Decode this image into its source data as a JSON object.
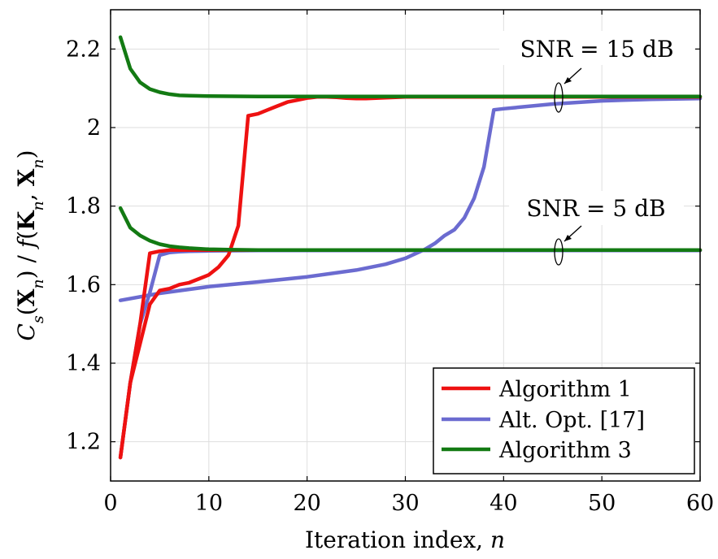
{
  "chart_data": {
    "type": "line",
    "xlabel": "Iteration index, n",
    "ylabel": "C_s(X_n) / f(K_n, X_n)",
    "xlim": [
      0,
      60
    ],
    "ylim": [
      1.1,
      2.3
    ],
    "xticks": [
      "0",
      "10",
      "20",
      "30",
      "40",
      "50",
      "60"
    ],
    "yticks": [
      "1.2",
      "1.4",
      "1.6",
      "1.8",
      "2",
      "2.2"
    ],
    "grid": true,
    "legend_position": "bottom-right",
    "legend": [
      "Algorithm 1",
      "Alt. Opt. [17]",
      "Algorithm 3"
    ],
    "annotations": [
      "SNR = 15 dB",
      "SNR = 5 dB"
    ],
    "series": [
      {
        "name": "Algorithm 1",
        "color": "#ee1111",
        "group": "SNR = 15 dB",
        "x": [
          1,
          2,
          3,
          4,
          5,
          6,
          7,
          8,
          9,
          10,
          11,
          12,
          13,
          14,
          15,
          16,
          17,
          18,
          19,
          20,
          21,
          22,
          23,
          24,
          25,
          26,
          27,
          28,
          29,
          30,
          32,
          35,
          40,
          45,
          50,
          55,
          60
        ],
        "y": [
          1.16,
          1.35,
          1.45,
          1.55,
          1.585,
          1.59,
          1.6,
          1.605,
          1.615,
          1.625,
          1.645,
          1.675,
          1.75,
          2.03,
          2.035,
          2.045,
          2.055,
          2.065,
          2.07,
          2.075,
          2.078,
          2.078,
          2.077,
          2.075,
          2.074,
          2.074,
          2.075,
          2.076,
          2.077,
          2.078,
          2.078,
          2.078,
          2.078,
          2.078,
          2.078,
          2.078,
          2.078
        ]
      },
      {
        "name": "Alt. Opt. [17]",
        "color": "#6b6bd0",
        "group": "SNR = 15 dB",
        "x": [
          1,
          5,
          10,
          15,
          20,
          25,
          28,
          30,
          32,
          33,
          34,
          35,
          36,
          37,
          38,
          39,
          40,
          45,
          50,
          55,
          60
        ],
        "y": [
          1.56,
          1.578,
          1.595,
          1.607,
          1.62,
          1.637,
          1.652,
          1.667,
          1.69,
          1.705,
          1.725,
          1.74,
          1.77,
          1.82,
          1.9,
          2.045,
          2.048,
          2.06,
          2.068,
          2.072,
          2.074
        ]
      },
      {
        "name": "Algorithm 3",
        "color": "#137a13",
        "group": "SNR = 15 dB",
        "x": [
          1,
          2,
          3,
          4,
          5,
          6,
          7,
          8,
          10,
          15,
          20,
          30,
          40,
          50,
          60
        ],
        "y": [
          2.23,
          2.15,
          2.115,
          2.098,
          2.09,
          2.085,
          2.082,
          2.081,
          2.08,
          2.079,
          2.079,
          2.079,
          2.079,
          2.079,
          2.079
        ]
      },
      {
        "name": "Algorithm 1",
        "color": "#ee1111",
        "group": "SNR = 5 dB",
        "x": [
          1,
          2,
          3,
          4,
          5,
          6,
          7,
          8,
          10,
          15,
          20,
          30,
          40,
          50,
          60
        ],
        "y": [
          1.16,
          1.35,
          1.5,
          1.68,
          1.685,
          1.688,
          1.688,
          1.688,
          1.688,
          1.688,
          1.688,
          1.688,
          1.688,
          1.688,
          1.688
        ]
      },
      {
        "name": "Alt. Opt. [17]",
        "color": "#6b6bd0",
        "group": "SNR = 5 dB",
        "x": [
          1,
          2,
          3,
          4,
          5,
          6,
          7,
          8,
          10,
          15,
          20,
          30,
          40,
          50,
          60
        ],
        "y": [
          1.16,
          1.35,
          1.5,
          1.58,
          1.675,
          1.682,
          1.684,
          1.685,
          1.686,
          1.687,
          1.687,
          1.687,
          1.687,
          1.687,
          1.687
        ]
      },
      {
        "name": "Algorithm 3",
        "color": "#137a13",
        "group": "SNR = 5 dB",
        "x": [
          1,
          2,
          3,
          4,
          5,
          6,
          7,
          8,
          10,
          12,
          15,
          20,
          30,
          40,
          50,
          60
        ],
        "y": [
          1.795,
          1.745,
          1.725,
          1.712,
          1.703,
          1.698,
          1.695,
          1.693,
          1.69,
          1.689,
          1.688,
          1.688,
          1.688,
          1.688,
          1.688,
          1.688
        ]
      }
    ]
  }
}
